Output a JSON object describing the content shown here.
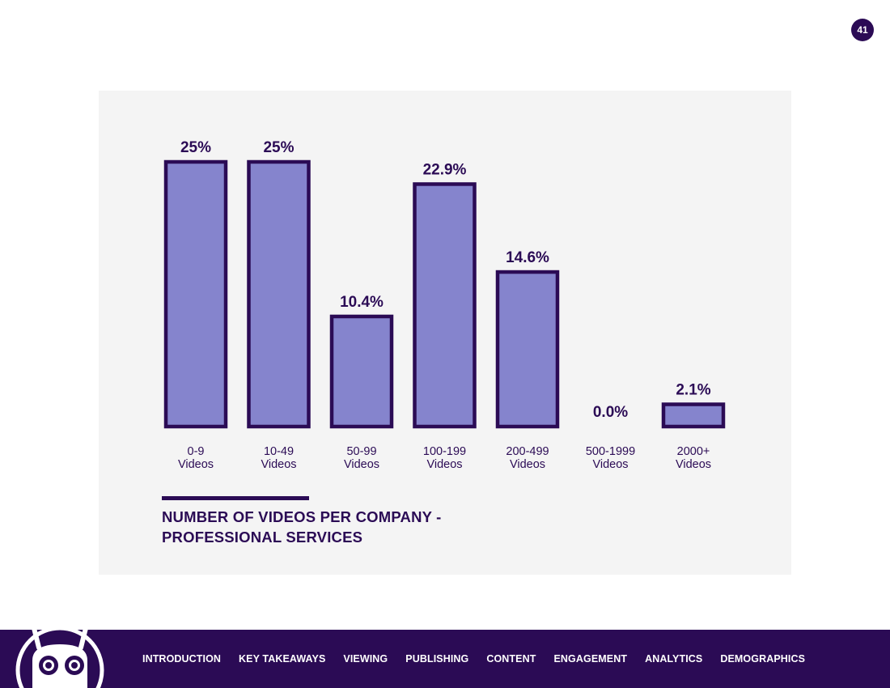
{
  "page_number": "41",
  "chart_data": {
    "type": "bar",
    "title_line1": "NUMBER OF VIDEOS PER COMPANY -",
    "title_line2": "PROFESSIONAL SERVICES",
    "categories": [
      [
        "0-9",
        "Videos"
      ],
      [
        "10-49",
        "Videos"
      ],
      [
        "50-99",
        "Videos"
      ],
      [
        "100-199",
        "Videos"
      ],
      [
        "200-499",
        "Videos"
      ],
      [
        "500-1999",
        "Videos"
      ],
      [
        "2000+",
        "Videos"
      ]
    ],
    "values": [
      25,
      25,
      10.4,
      22.9,
      14.6,
      0.0,
      2.1
    ],
    "value_labels": [
      "25%",
      "25%",
      "10.4%",
      "22.9%",
      "14.6%",
      "0.0%",
      "2.1%"
    ],
    "ylim": [
      0,
      25
    ],
    "grid": false,
    "legend": "none",
    "bar_fill": "#8584cd",
    "bar_stroke": "#2b0b55"
  },
  "nav": {
    "items": [
      "INTRODUCTION",
      "KEY TAKEAWAYS",
      "VIEWING",
      "PUBLISHING",
      "CONTENT",
      "ENGAGEMENT",
      "ANALYTICS",
      "DEMOGRAPHICS"
    ]
  },
  "colors": {
    "brand": "#2b0b55",
    "panel": "#f4f4f4",
    "bar": "#8584cd"
  }
}
